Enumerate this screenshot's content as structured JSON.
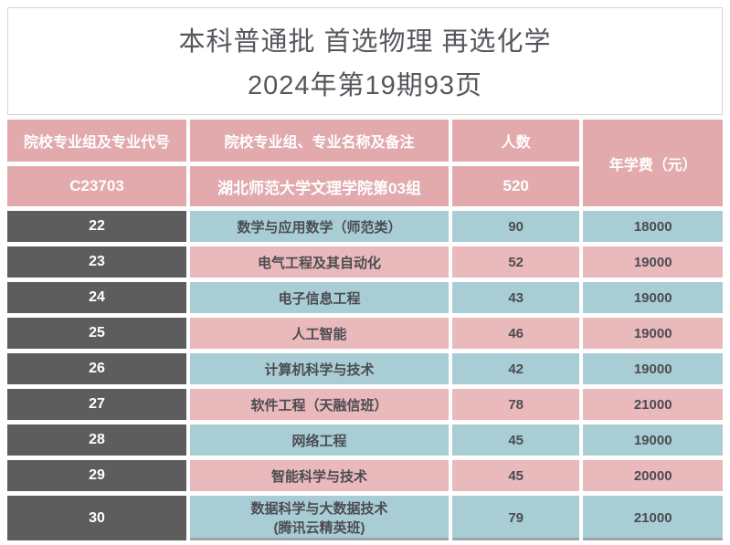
{
  "title": {
    "line1": "本科普通批  首选物理  再选化学",
    "line2": "2024年第19期93页"
  },
  "table": {
    "headers": {
      "col1": "院校专业组及专业代号",
      "col2": "院校专业组、专业名称及备注",
      "col3": "人数",
      "col4": "年学费（元）"
    },
    "group_row": {
      "code": "C23703",
      "name": "湖北师范大学文理学院第03组",
      "count": "520"
    },
    "rows": [
      {
        "code": "22",
        "name": "数学与应用数学（师范类）",
        "count": "90",
        "fee": "18000"
      },
      {
        "code": "23",
        "name": "电气工程及其自动化",
        "count": "52",
        "fee": "19000"
      },
      {
        "code": "24",
        "name": "电子信息工程",
        "count": "43",
        "fee": "19000"
      },
      {
        "code": "25",
        "name": "人工智能",
        "count": "46",
        "fee": "19000"
      },
      {
        "code": "26",
        "name": "计算机科学与技术",
        "count": "42",
        "fee": "19000"
      },
      {
        "code": "27",
        "name": "软件工程（天融信班）",
        "count": "78",
        "fee": "21000"
      },
      {
        "code": "28",
        "name": "网络工程",
        "count": "45",
        "fee": "19000"
      },
      {
        "code": "29",
        "name": "智能科学与技术",
        "count": "45",
        "fee": "20000"
      },
      {
        "code": "30",
        "name": "数据科学与大数据技术",
        "name2": "(腾讯云精英班)",
        "count": "79",
        "fee": "21000"
      }
    ]
  },
  "colors": {
    "header_pink": "#e2aaad",
    "row_pink": "#eab9bb",
    "row_blue": "#a9cdd5",
    "code_gray": "#5d5d5d",
    "text_dark": "#4b4d52",
    "title_gray": "#55575c"
  }
}
